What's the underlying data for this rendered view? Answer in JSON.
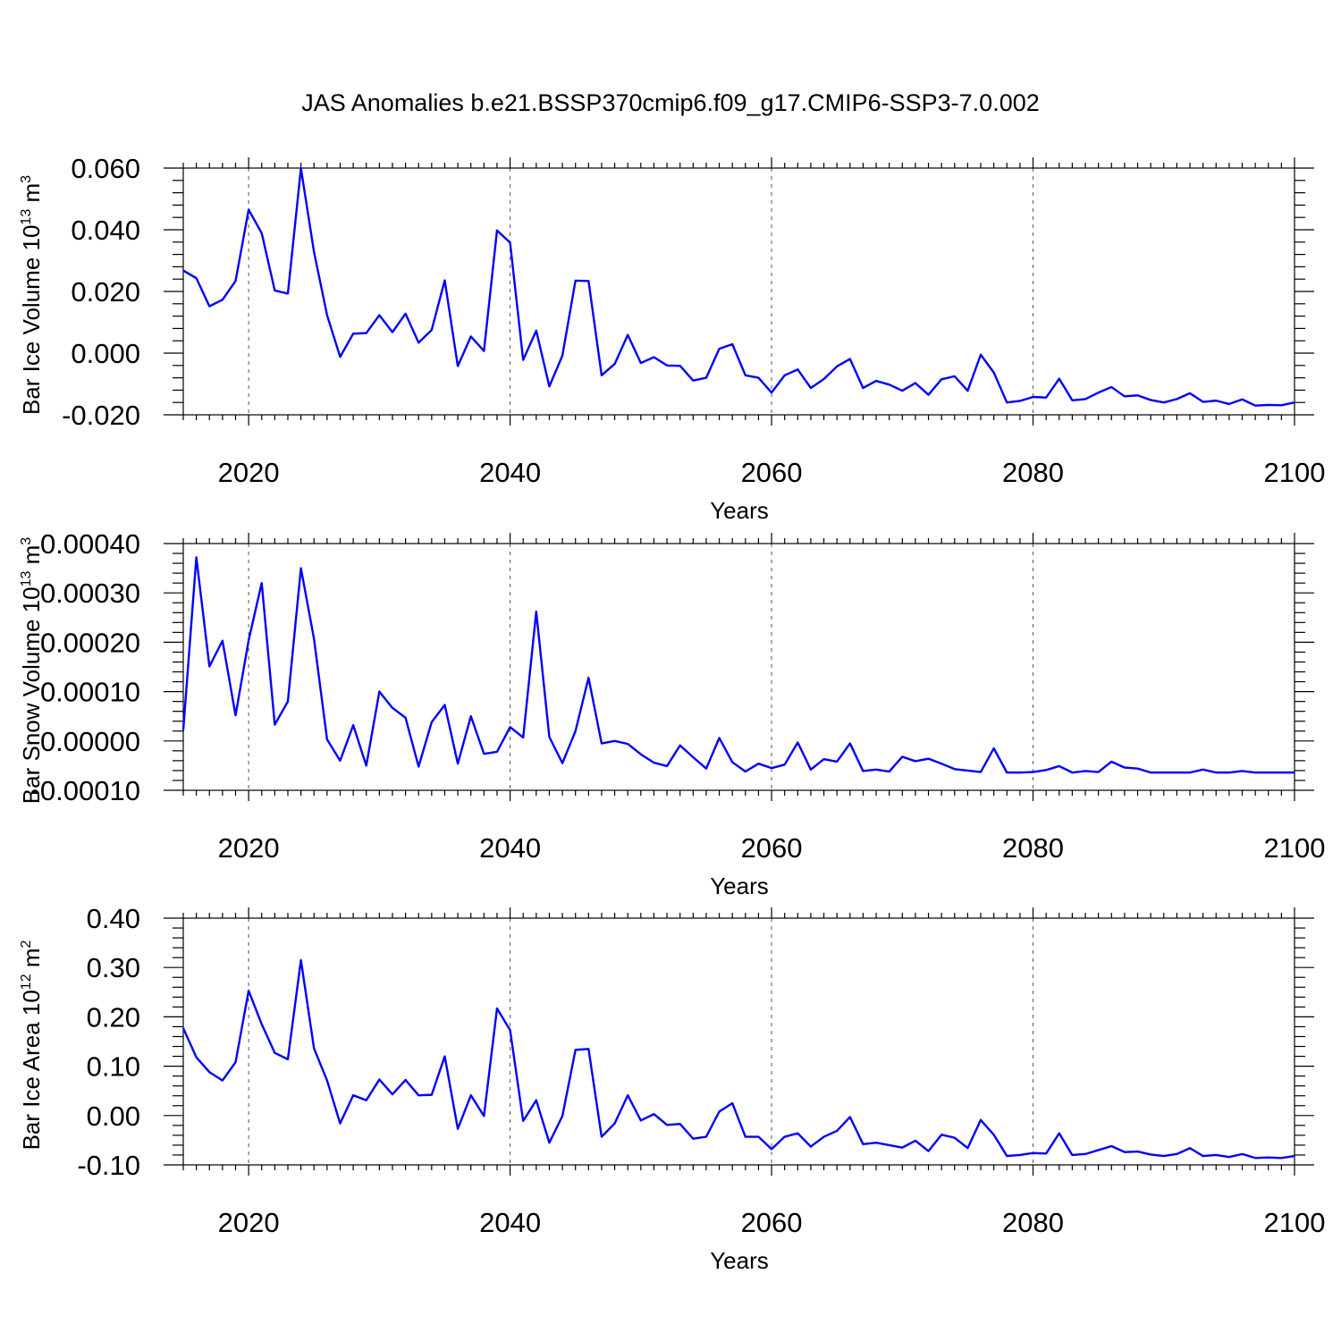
{
  "title": "JAS Anomalies b.e21.BSSP370cmip6.f09_g17.CMIP6-SSP3-7.0.002",
  "line_color": "#0000ff",
  "chart_data": [
    {
      "type": "line",
      "title": "",
      "xlabel": "Years",
      "ylabel": "Bar Ice Volume 10",
      "ylabel_exp": "13",
      "ylabel_unit": " m",
      "ylabel_unit_exp": "3",
      "xlim": [
        2015,
        2100
      ],
      "ylim": [
        -0.02,
        0.06
      ],
      "grid": "vertical dashed at major x ticks",
      "x_ticks": [
        2020,
        2040,
        2060,
        2080,
        2100
      ],
      "x_tick_labels": [
        "2020",
        "2040",
        "2060",
        "2080",
        "2100"
      ],
      "y_ticks": [
        -0.02,
        0.0,
        0.02,
        0.04,
        0.06
      ],
      "y_tick_labels": [
        "-0.020",
        "0.000",
        "0.020",
        "0.040",
        "0.060"
      ],
      "x_start": 2015,
      "series": [
        {
          "values": [
            0.0268,
            0.0243,
            0.0152,
            0.0173,
            0.0234,
            0.0465,
            0.0389,
            0.0203,
            0.0193,
            0.0599,
            0.0328,
            0.0123,
            -0.0012,
            0.0063,
            0.0065,
            0.0123,
            0.0068,
            0.0128,
            0.0034,
            0.0075,
            0.0236,
            -0.0042,
            0.0054,
            0.0007,
            0.0398,
            0.0358,
            -0.0022,
            0.0073,
            -0.0108,
            -0.0008,
            0.0235,
            0.0234,
            -0.0072,
            -0.0035,
            0.0059,
            -0.0032,
            -0.0013,
            -0.004,
            -0.0041,
            -0.0089,
            -0.008,
            0.0014,
            0.0029,
            -0.0072,
            -0.008,
            -0.0128,
            -0.0072,
            -0.0053,
            -0.0113,
            -0.0084,
            -0.0043,
            -0.0019,
            -0.0113,
            -0.009,
            -0.0102,
            -0.0122,
            -0.0097,
            -0.0135,
            -0.0085,
            -0.0075,
            -0.0122,
            -0.0005,
            -0.0063,
            -0.016,
            -0.0155,
            -0.0142,
            -0.0144,
            -0.0083,
            -0.0153,
            -0.0149,
            -0.0128,
            -0.011,
            -0.014,
            -0.0137,
            -0.0152,
            -0.016,
            -0.0149,
            -0.013,
            -0.0158,
            -0.0154,
            -0.0165,
            -0.015,
            -0.017,
            -0.0168,
            -0.0169,
            -0.016
          ]
        }
      ]
    },
    {
      "type": "line",
      "title": "",
      "xlabel": "Years",
      "ylabel": "Bar Snow Volume 10",
      "ylabel_exp": "13",
      "ylabel_unit": " m",
      "ylabel_unit_exp": "3",
      "xlim": [
        2015,
        2100
      ],
      "ylim": [
        -0.0001,
        0.0004
      ],
      "grid": "vertical dashed at major x ticks",
      "x_ticks": [
        2020,
        2040,
        2060,
        2080,
        2100
      ],
      "x_tick_labels": [
        "2020",
        "2040",
        "2060",
        "2080",
        "2100"
      ],
      "y_ticks": [
        -0.0001,
        0.0,
        0.0001,
        0.0002,
        0.0003,
        0.0004
      ],
      "y_tick_labels": [
        "-0.00010",
        "0.00000",
        "0.00010",
        "0.00020",
        "0.00030",
        "0.00040"
      ],
      "x_start": 2015,
      "series": [
        {
          "values": [
            2.2e-05,
            0.000372,
            0.000151,
            0.000203,
            5.2e-05,
            0.000204,
            0.00032,
            3.3e-05,
            8e-05,
            0.00035,
            0.000207,
            3e-06,
            -4e-05,
            3.2e-05,
            -5e-05,
            0.0001,
            6.7e-05,
            4.7e-05,
            -5.2e-05,
            3.8e-05,
            7.3e-05,
            -4.6e-05,
            5e-05,
            -2.6e-05,
            -2.2e-05,
            2.8e-05,
            7e-06,
            0.000262,
            8e-06,
            -4.5e-05,
            2e-05,
            0.000128,
            -5e-06,
            0.0,
            -6e-06,
            -2.7e-05,
            -4.4e-05,
            -5.1e-05,
            -9e-06,
            -3.3e-05,
            -5.6e-05,
            6e-06,
            -4.3e-05,
            -6.2e-05,
            -4.6e-05,
            -5.5e-05,
            -4.8e-05,
            -3e-06,
            -5.8e-05,
            -3.7e-05,
            -4.2e-05,
            -5e-06,
            -6.1e-05,
            -5.8e-05,
            -6.2e-05,
            -3.2e-05,
            -4.1e-05,
            -3.6e-05,
            -4.6e-05,
            -5.7e-05,
            -6e-05,
            -6.3e-05,
            -1.5e-05,
            -6.4e-05,
            -6.4e-05,
            -6.3e-05,
            -5.9e-05,
            -5.1e-05,
            -6.4e-05,
            -6.1e-05,
            -6.3e-05,
            -4.2e-05,
            -5.4e-05,
            -5.6e-05,
            -6.4e-05,
            -6.4e-05,
            -6.4e-05,
            -6.4e-05,
            -5.8e-05,
            -6.4e-05,
            -6.4e-05,
            -6.1e-05,
            -6.4e-05,
            -6.4e-05,
            -6.4e-05,
            -6.4e-05
          ]
        }
      ]
    },
    {
      "type": "line",
      "title": "",
      "xlabel": "Years",
      "ylabel": "Bar Ice Area 10",
      "ylabel_exp": "12",
      "ylabel_unit": " m",
      "ylabel_unit_exp": "2",
      "xlim": [
        2015,
        2100
      ],
      "ylim": [
        -0.1,
        0.4
      ],
      "grid": "vertical dashed at major x ticks",
      "x_ticks": [
        2020,
        2040,
        2060,
        2080,
        2100
      ],
      "x_tick_labels": [
        "2020",
        "2040",
        "2060",
        "2080",
        "2100"
      ],
      "y_ticks": [
        -0.1,
        0.0,
        0.1,
        0.2,
        0.3,
        0.4
      ],
      "y_tick_labels": [
        "-0.10",
        "0.00",
        "0.10",
        "0.20",
        "0.30",
        "0.40"
      ],
      "x_start": 2015,
      "series": [
        {
          "values": [
            0.177,
            0.118,
            0.088,
            0.071,
            0.108,
            0.253,
            0.185,
            0.127,
            0.114,
            0.315,
            0.136,
            0.071,
            -0.016,
            0.041,
            0.031,
            0.073,
            0.043,
            0.072,
            0.041,
            0.042,
            0.12,
            -0.027,
            0.041,
            -0.001,
            0.217,
            0.173,
            -0.011,
            0.031,
            -0.055,
            -0.001,
            0.133,
            0.135,
            -0.043,
            -0.016,
            0.041,
            -0.01,
            0.003,
            -0.019,
            -0.017,
            -0.047,
            -0.043,
            0.008,
            0.025,
            -0.043,
            -0.043,
            -0.068,
            -0.043,
            -0.036,
            -0.063,
            -0.043,
            -0.031,
            -0.003,
            -0.058,
            -0.055,
            -0.06,
            -0.065,
            -0.051,
            -0.072,
            -0.039,
            -0.045,
            -0.066,
            -0.009,
            -0.039,
            -0.082,
            -0.08,
            -0.076,
            -0.077,
            -0.036,
            -0.08,
            -0.078,
            -0.07,
            -0.062,
            -0.074,
            -0.073,
            -0.079,
            -0.082,
            -0.078,
            -0.066,
            -0.082,
            -0.08,
            -0.084,
            -0.078,
            -0.086,
            -0.085,
            -0.086,
            -0.082
          ]
        }
      ]
    }
  ]
}
